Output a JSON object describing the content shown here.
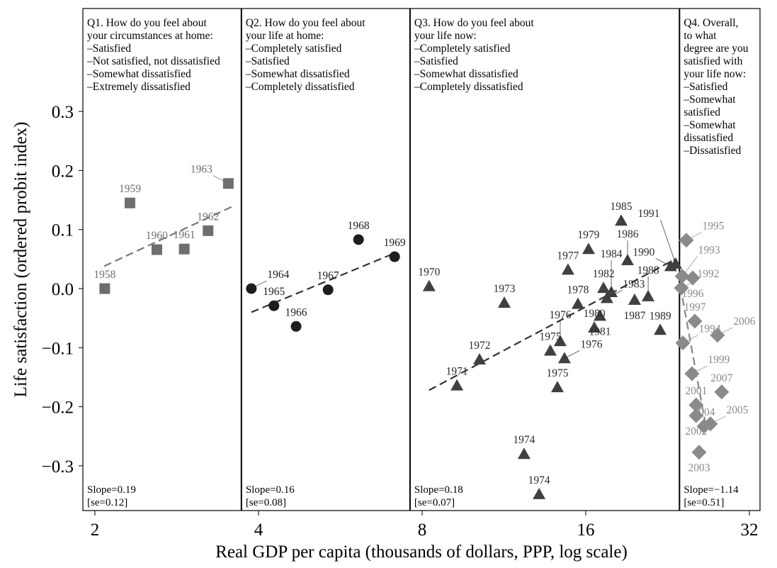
{
  "chart_data": {
    "type": "scatter",
    "xlabel": "Real GDP per capita (thousands of dollars, PPP, log scale)",
    "ylabel": "Life satisfaction (ordered probit index)",
    "x_scale": "log2",
    "xlim": [
      1.85,
      34
    ],
    "ylim": [
      -0.375,
      0.475
    ],
    "x_ticks": [
      2,
      4,
      8,
      16,
      32
    ],
    "y_ticks": [
      0.3,
      0.2,
      0.1,
      0.0,
      -0.1,
      -0.2,
      -0.3
    ],
    "y_tick_labels": [
      "0.3",
      "0.2",
      "0.1",
      "0.0",
      "−0.1",
      "−0.2",
      "−0.3"
    ],
    "grid": false,
    "panel_boundaries": [
      3.72,
      7.6,
      23.8
    ],
    "panels": [
      {
        "question": [
          "Q1. How do you feel about",
          "your circumstances at home:",
          "–Satisfied",
          "–Not satisfied, not dissatisfied",
          "–Somewhat dissatisfied",
          "–Extremely dissatisfied"
        ],
        "slope": "Slope=0.19",
        "se": "[se=0.12]",
        "marker": "square",
        "color": "#6e6e6e",
        "label_color": "#6e6e6e",
        "fit": [
          [
            2.08,
            0.038
          ],
          [
            3.6,
            0.14
          ]
        ],
        "points": [
          {
            "label": "1958",
            "x": 2.085,
            "y": 0.0
          },
          {
            "label": "1959",
            "x": 2.32,
            "y": 0.145
          },
          {
            "label": "1960",
            "x": 2.6,
            "y": 0.066
          },
          {
            "label": "1961",
            "x": 2.92,
            "y": 0.067
          },
          {
            "label": "1962",
            "x": 3.23,
            "y": 0.098
          },
          {
            "label": "1963",
            "x": 3.52,
            "y": 0.178
          }
        ]
      },
      {
        "question": [
          "Q2. How do you feel about",
          "your life at home:",
          "–Completely satisfied",
          "–Satisfied",
          "–Somewhat dissatisfied",
          "–Completely dissatisfied"
        ],
        "slope": "Slope=0.16",
        "se": "[se=0.08]",
        "marker": "circle",
        "color": "#1e1e1e",
        "label_color": "#1e1e1e",
        "fit": [
          [
            3.88,
            -0.04
          ],
          [
            7.12,
            0.06
          ]
        ],
        "points": [
          {
            "label": "1964",
            "x": 3.88,
            "y": 0.0
          },
          {
            "label": "1965",
            "x": 4.27,
            "y": -0.029
          },
          {
            "label": "1966",
            "x": 4.69,
            "y": -0.064
          },
          {
            "label": "1967",
            "x": 5.37,
            "y": -0.002
          },
          {
            "label": "1968",
            "x": 6.11,
            "y": 0.083
          },
          {
            "label": "1969",
            "x": 7.12,
            "y": 0.054
          }
        ]
      },
      {
        "question": [
          "Q3. How do you feel about",
          "your life now:",
          "–Completely satisfied",
          "–Satisfied",
          "–Somewhat dissatisfied",
          "–Completely dissatisfied"
        ],
        "slope": "Slope=0.18",
        "se": "[se=0.07]",
        "marker": "triangle",
        "color": "#404040",
        "label_color": "#2a2a2a",
        "fit": [
          [
            8.24,
            -0.172
          ],
          [
            23.4,
            0.05
          ]
        ],
        "points": [
          {
            "label": "1970",
            "x": 8.24,
            "y": 0.004
          },
          {
            "label": "1971",
            "x": 9.27,
            "y": -0.164
          },
          {
            "label": "1972",
            "x": 10.2,
            "y": -0.12
          },
          {
            "label": "1973",
            "x": 11.33,
            "y": -0.024
          },
          {
            "label": "1974",
            "x": 12.32,
            "y": -0.28
          },
          {
            "label": "1974",
            "x": 13.13,
            "y": -0.348
          },
          {
            "label": "1975",
            "x": 14.19,
            "y": -0.167
          },
          {
            "label": "1975",
            "x": 13.77,
            "y": -0.105
          },
          {
            "label": "1976",
            "x": 14.36,
            "y": -0.089
          },
          {
            "label": "1976",
            "x": 14.62,
            "y": -0.118
          },
          {
            "label": "1977",
            "x": 14.84,
            "y": 0.032
          },
          {
            "label": "1978",
            "x": 15.48,
            "y": -0.026
          },
          {
            "label": "1979",
            "x": 16.19,
            "y": 0.067
          },
          {
            "label": "1980",
            "x": 16.59,
            "y": -0.066
          },
          {
            "label": "1981",
            "x": 16.99,
            "y": -0.046
          },
          {
            "label": "1982",
            "x": 17.25,
            "y": 0.001
          },
          {
            "label": "1983",
            "x": 17.5,
            "y": -0.016
          },
          {
            "label": "1984",
            "x": 17.83,
            "y": -0.006
          },
          {
            "label": "1985",
            "x": 18.59,
            "y": 0.115
          },
          {
            "label": "1986",
            "x": 19.1,
            "y": 0.048
          },
          {
            "label": "1987",
            "x": 19.68,
            "y": -0.019
          },
          {
            "label": "1988",
            "x": 20.84,
            "y": -0.013
          },
          {
            "label": "1989",
            "x": 21.93,
            "y": -0.07
          },
          {
            "label": "1990",
            "x": 22.93,
            "y": 0.038
          },
          {
            "label": "1991",
            "x": 23.42,
            "y": 0.042
          }
        ]
      },
      {
        "question": [
          "Q4. Overall,",
          "to what",
          "degree are you",
          "satisfied with",
          "your life now:",
          "–Satisfied",
          "–Somewhat",
          " satisfied",
          "–Somewhat",
          " dissatisfied",
          "–Dissatisfied"
        ],
        "slope": "Slope=−1.14",
        "se": "[se=0.51]",
        "marker": "diamond",
        "color": "#8a8a8a",
        "label_color": "#8a8a8a",
        "fit": [
          [
            24.1,
            -0.016
          ],
          [
            26.6,
            -0.232
          ]
        ],
        "points": [
          {
            "label": "1992",
            "x": 23.99,
            "y": 0.001
          },
          {
            "label": "1993",
            "x": 24.07,
            "y": 0.021
          },
          {
            "label": "1994",
            "x": 24.14,
            "y": -0.092
          },
          {
            "label": "1995",
            "x": 24.5,
            "y": 0.082
          },
          {
            "label": "1996",
            "x": 25.17,
            "y": 0.018
          },
          {
            "label": "1997",
            "x": 25.4,
            "y": -0.055
          },
          {
            "label": "1999",
            "x": 25.09,
            "y": -0.144
          },
          {
            "label": "2001",
            "x": 25.54,
            "y": -0.197
          },
          {
            "label": "2002",
            "x": 25.54,
            "y": -0.215
          },
          {
            "label": "2003",
            "x": 25.86,
            "y": -0.277
          },
          {
            "label": "2004",
            "x": 26.41,
            "y": -0.233
          },
          {
            "label": "2005",
            "x": 27.13,
            "y": -0.229
          },
          {
            "label": "2006",
            "x": 27.95,
            "y": -0.079
          },
          {
            "label": "2007",
            "x": 28.46,
            "y": -0.175
          }
        ]
      }
    ]
  }
}
